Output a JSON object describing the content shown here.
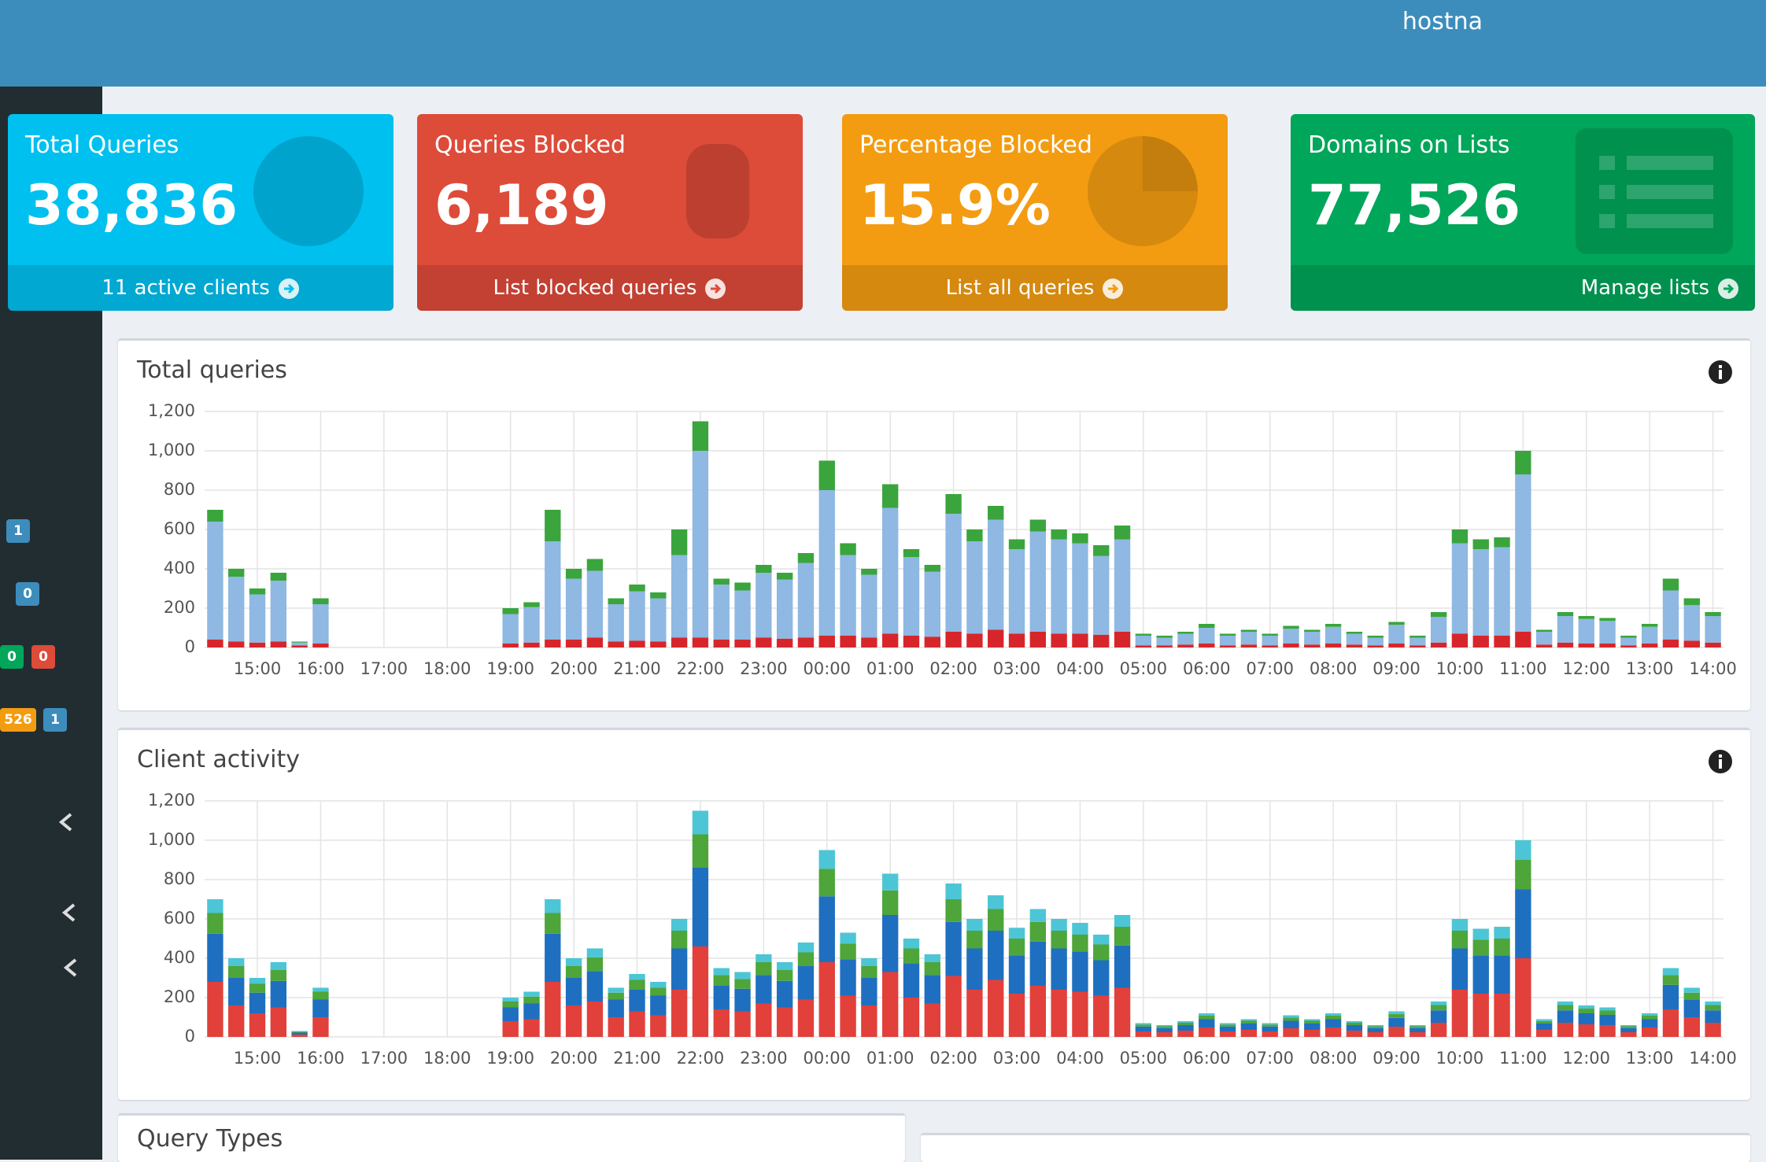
{
  "header": {
    "hostname": "hostna"
  },
  "sidebar": {
    "badges": [
      "1",
      "0",
      "0",
      "0",
      "526",
      "1"
    ]
  },
  "stats": [
    {
      "title": "Total Queries",
      "value": "38,836",
      "link": "11 active clients"
    },
    {
      "title": "Queries Blocked",
      "value": "6,189",
      "link": "List blocked queries"
    },
    {
      "title": "Percentage Blocked",
      "value": "15.9%",
      "link": "List all queries"
    },
    {
      "title": "Domains on Lists",
      "value": "77,526",
      "link": "Manage lists"
    }
  ],
  "chart_data": [
    {
      "type": "bar",
      "title": "Total queries",
      "stacked": true,
      "grid": true,
      "categories": [
        null,
        null,
        "15:00",
        null,
        null,
        "16:00",
        null,
        null,
        "17:00",
        null,
        null,
        "18:00",
        null,
        null,
        "19:00",
        null,
        null,
        "20:00",
        null,
        null,
        "21:00",
        null,
        null,
        "22:00",
        null,
        null,
        "23:00",
        null,
        null,
        "00:00",
        null,
        null,
        "01:00",
        null,
        null,
        "02:00",
        null,
        null,
        "03:00",
        null,
        null,
        "04:00",
        null,
        null,
        "05:00",
        null,
        null,
        "06:00",
        null,
        null,
        "07:00",
        null,
        null,
        "08:00",
        null,
        null,
        "09:00",
        null,
        null,
        "10:00",
        null,
        null,
        "11:00",
        null,
        null,
        "12:00",
        null,
        null,
        "13:00",
        null,
        null,
        "14:00"
      ],
      "ylim": [
        0,
        1200
      ],
      "yticks": [
        0,
        200,
        400,
        600,
        800,
        {
          "value": 1000,
          "label": "1,000"
        },
        {
          "value": 1200,
          "label": "1,200"
        }
      ],
      "series": [
        {
          "color": "#d7262b",
          "values": [
            40,
            30,
            25,
            30,
            10,
            20,
            0,
            0,
            0,
            0,
            0,
            0,
            0,
            0,
            20,
            25,
            40,
            40,
            50,
            30,
            35,
            30,
            50,
            50,
            40,
            40,
            50,
            45,
            50,
            60,
            60,
            50,
            70,
            60,
            55,
            80,
            70,
            90,
            70,
            80,
            70,
            70,
            65,
            80,
            10,
            10,
            15,
            20,
            10,
            15,
            10,
            20,
            15,
            20,
            15,
            10,
            20,
            10,
            25,
            70,
            60,
            60,
            80,
            15,
            25,
            20,
            20,
            10,
            20,
            40,
            35,
            25
          ]
        },
        {
          "color": "#8fb8e3",
          "values": [
            600,
            330,
            245,
            310,
            15,
            200,
            0,
            0,
            0,
            0,
            0,
            0,
            0,
            0,
            150,
            180,
            500,
            310,
            340,
            190,
            250,
            220,
            420,
            950,
            280,
            250,
            330,
            300,
            380,
            740,
            410,
            320,
            640,
            400,
            330,
            600,
            470,
            560,
            430,
            510,
            480,
            460,
            400,
            470,
            50,
            40,
            55,
            80,
            50,
            65,
            50,
            75,
            65,
            85,
            55,
            40,
            95,
            40,
            130,
            460,
            440,
            450,
            800,
            65,
            135,
            125,
            115,
            40,
            85,
            250,
            180,
            135
          ]
        },
        {
          "color": "#3aa53c",
          "values": [
            60,
            40,
            30,
            40,
            5,
            30,
            0,
            0,
            0,
            0,
            0,
            0,
            0,
            0,
            30,
            25,
            160,
            50,
            60,
            30,
            35,
            30,
            130,
            150,
            30,
            40,
            40,
            35,
            50,
            150,
            60,
            30,
            120,
            40,
            35,
            100,
            60,
            70,
            50,
            60,
            50,
            50,
            55,
            70,
            10,
            10,
            10,
            20,
            10,
            10,
            10,
            15,
            10,
            15,
            10,
            10,
            15,
            10,
            25,
            70,
            50,
            50,
            120,
            10,
            20,
            15,
            15,
            10,
            15,
            60,
            35,
            20
          ]
        }
      ]
    },
    {
      "type": "bar",
      "title": "Client activity",
      "stacked": true,
      "grid": true,
      "categories": [
        null,
        null,
        "15:00",
        null,
        null,
        "16:00",
        null,
        null,
        "17:00",
        null,
        null,
        "18:00",
        null,
        null,
        "19:00",
        null,
        null,
        "20:00",
        null,
        null,
        "21:00",
        null,
        null,
        "22:00",
        null,
        null,
        "23:00",
        null,
        null,
        "00:00",
        null,
        null,
        "01:00",
        null,
        null,
        "02:00",
        null,
        null,
        "03:00",
        null,
        null,
        "04:00",
        null,
        null,
        "05:00",
        null,
        null,
        "06:00",
        null,
        null,
        "07:00",
        null,
        null,
        "08:00",
        null,
        null,
        "09:00",
        null,
        null,
        "10:00",
        null,
        null,
        "11:00",
        null,
        null,
        "12:00",
        null,
        null,
        "13:00",
        null,
        null,
        "14:00"
      ],
      "ylim": [
        0,
        1200
      ],
      "yticks": [
        0,
        200,
        400,
        600,
        800,
        {
          "value": 1000,
          "label": "1,000"
        },
        {
          "value": 1200,
          "label": "1,200"
        }
      ],
      "series": [
        {
          "color": "#e2403b",
          "values": [
            280,
            160,
            120,
            150,
            12,
            100,
            0,
            0,
            0,
            0,
            0,
            0,
            0,
            0,
            80,
            90,
            280,
            160,
            180,
            100,
            130,
            110,
            240,
            460,
            140,
            130,
            170,
            150,
            190,
            380,
            210,
            160,
            330,
            200,
            170,
            310,
            240,
            290,
            220,
            260,
            240,
            230,
            210,
            250,
            28,
            24,
            32,
            48,
            28,
            36,
            28,
            44,
            36,
            48,
            32,
            24,
            52,
            24,
            72,
            240,
            220,
            220,
            400,
            36,
            72,
            64,
            60,
            24,
            48,
            140,
            100,
            72
          ]
        },
        {
          "color": "#1f6fc0",
          "values": [
            245,
            140,
            105,
            135,
            10,
            90,
            0,
            0,
            0,
            0,
            0,
            0,
            0,
            0,
            70,
            80,
            245,
            140,
            155,
            90,
            110,
            100,
            210,
            400,
            120,
            115,
            145,
            135,
            170,
            335,
            185,
            140,
            290,
            175,
            145,
            275,
            210,
            250,
            195,
            225,
            210,
            205,
            180,
            215,
            25,
            21,
            28,
            42,
            25,
            32,
            25,
            38,
            32,
            42,
            28,
            21,
            45,
            21,
            63,
            210,
            195,
            195,
            350,
            32,
            63,
            56,
            52,
            21,
            42,
            125,
            88,
            63
          ]
        },
        {
          "color": "#4ea53a",
          "values": [
            105,
            60,
            45,
            55,
            5,
            40,
            0,
            0,
            0,
            0,
            0,
            0,
            0,
            0,
            30,
            35,
            105,
            60,
            70,
            35,
            50,
            40,
            90,
            170,
            55,
            50,
            65,
            55,
            70,
            140,
            80,
            60,
            125,
            75,
            65,
            115,
            90,
            110,
            85,
            100,
            90,
            85,
            80,
            95,
            10,
            9,
            12,
            18,
            10,
            14,
            10,
            17,
            14,
            18,
            12,
            9,
            20,
            9,
            27,
            90,
            80,
            85,
            150,
            13,
            27,
            24,
            22,
            9,
            18,
            50,
            37,
            27
          ]
        },
        {
          "color": "#4cc6d6",
          "values": [
            70,
            40,
            30,
            40,
            3,
            20,
            0,
            0,
            0,
            0,
            0,
            0,
            0,
            0,
            20,
            25,
            70,
            40,
            45,
            25,
            30,
            30,
            60,
            120,
            35,
            35,
            40,
            40,
            50,
            95,
            55,
            40,
            85,
            50,
            40,
            80,
            60,
            70,
            55,
            65,
            60,
            60,
            50,
            60,
            7,
            6,
            8,
            12,
            7,
            8,
            7,
            11,
            8,
            12,
            8,
            6,
            13,
            6,
            18,
            60,
            55,
            60,
            100,
            9,
            18,
            16,
            16,
            6,
            12,
            35,
            25,
            18
          ]
        }
      ]
    }
  ],
  "panels": {
    "query_types": "Query Types"
  }
}
